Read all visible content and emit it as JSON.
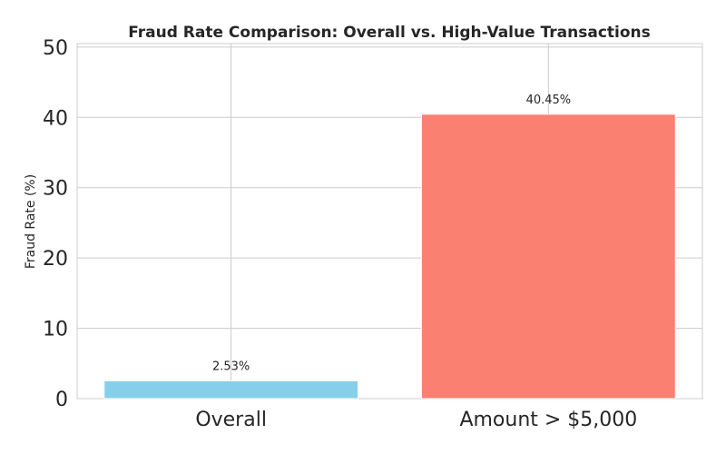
{
  "chart_data": {
    "type": "bar",
    "title": "Fraud Rate Comparison: Overall vs. High-Value Transactions",
    "xlabel": "",
    "ylabel": "Fraud Rate (%)",
    "categories": [
      "Overall",
      "Amount > $5,000"
    ],
    "values": [
      2.53,
      40.45
    ],
    "value_labels": [
      "2.53%",
      "40.45%"
    ],
    "colors": [
      "#87ceeb",
      "#fa8072"
    ],
    "ylim": [
      0,
      50.5
    ],
    "yticks": [
      0,
      10,
      20,
      30,
      40,
      50
    ],
    "grid": true
  }
}
